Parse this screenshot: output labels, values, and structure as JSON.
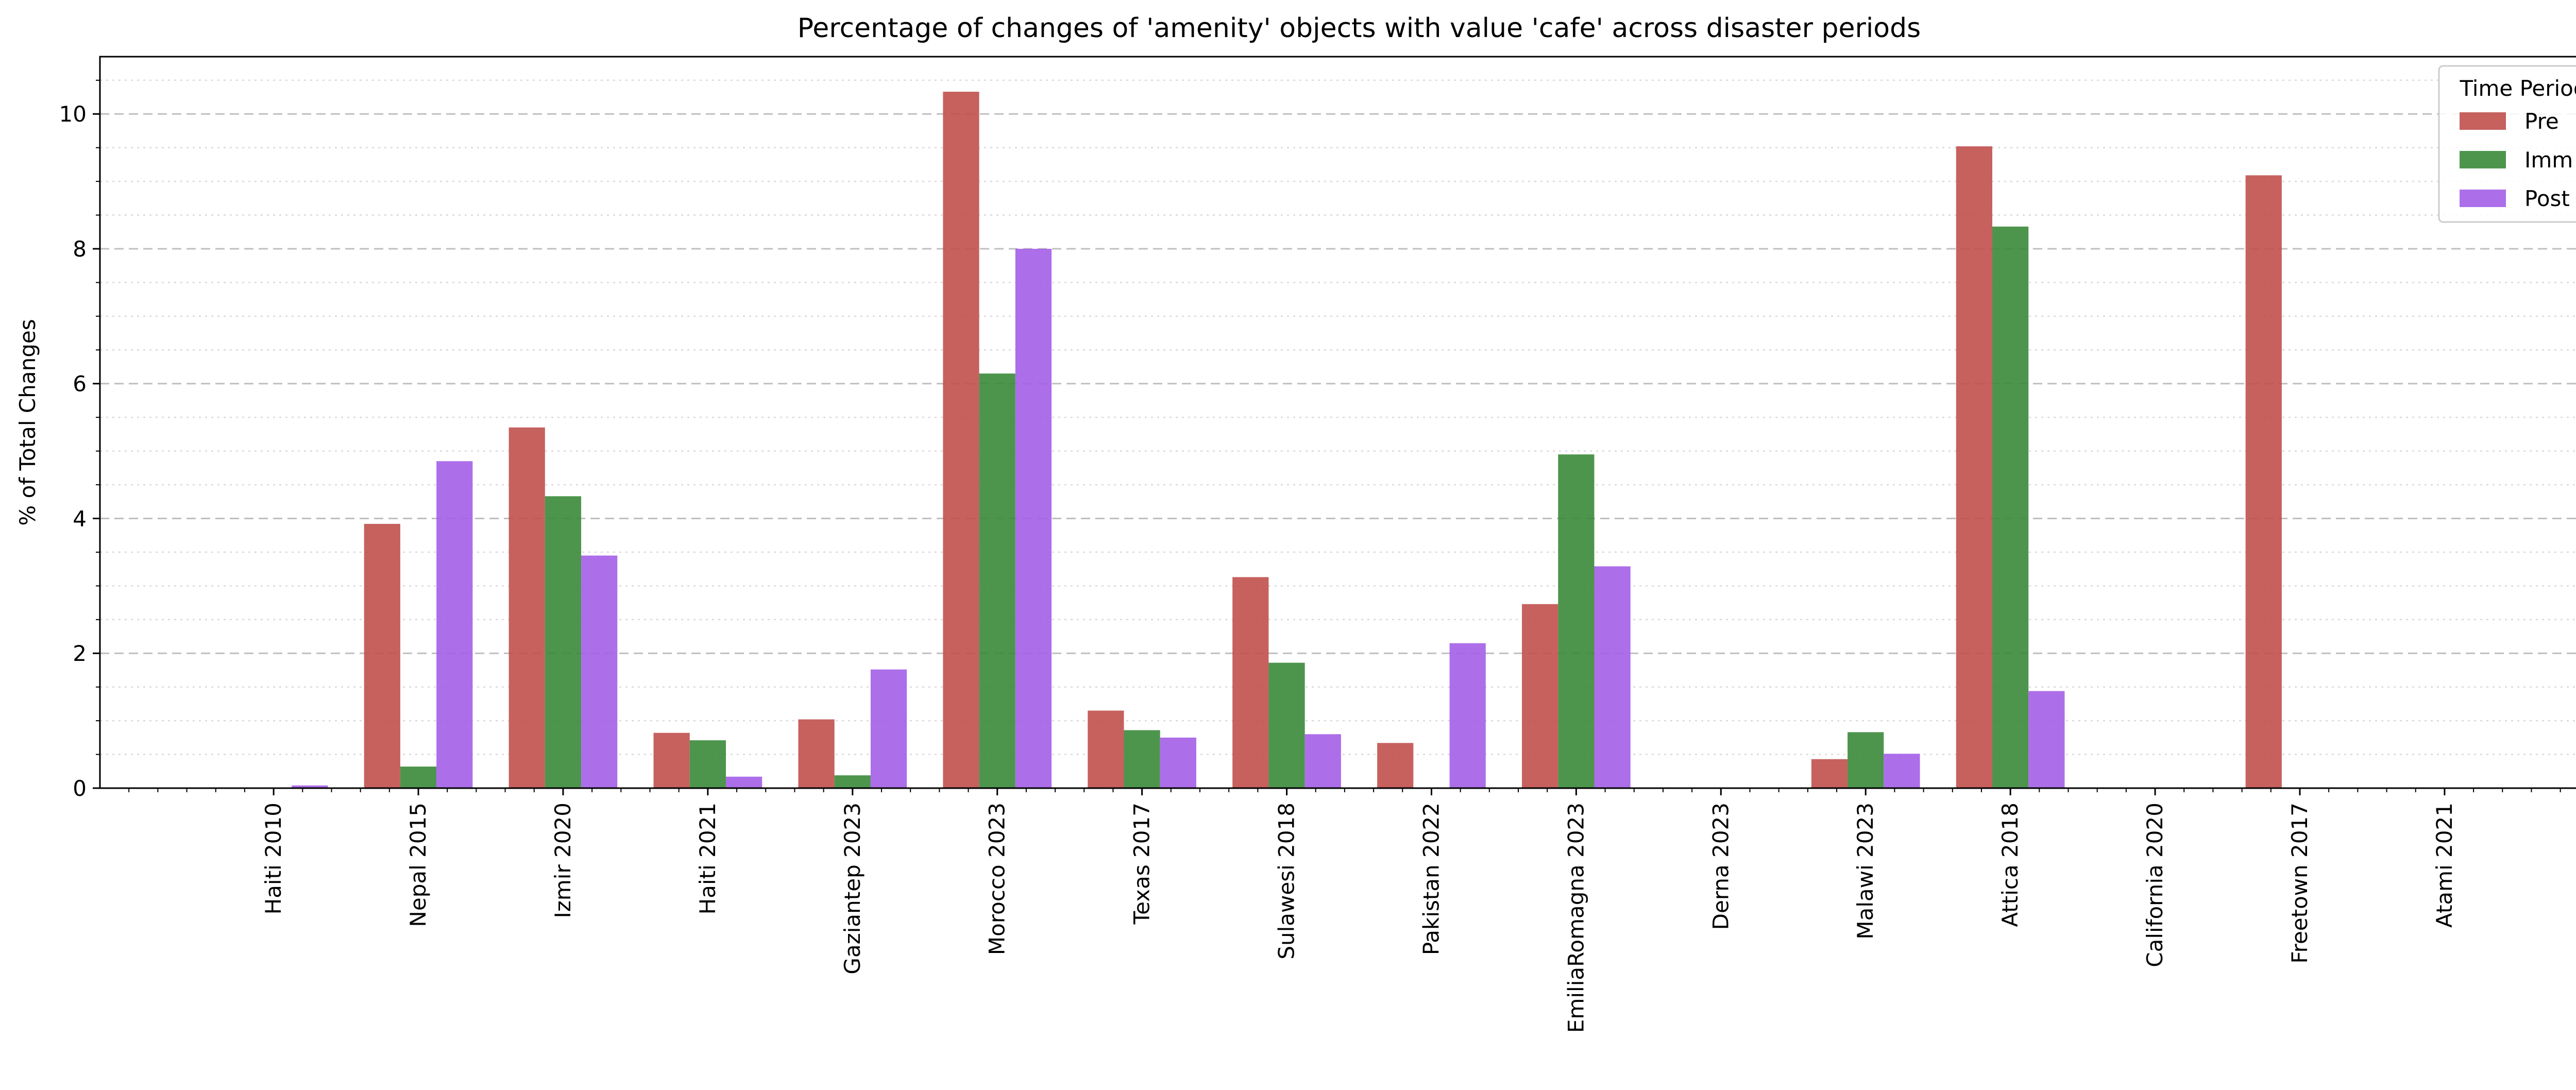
{
  "chart_data": {
    "type": "bar",
    "title": "Percentage of changes of 'amenity' objects with value 'cafe' across disaster periods",
    "xlabel": "",
    "ylabel": "% of Total Changes",
    "ylim": [
      0,
      10.85
    ],
    "yticks": [
      "0",
      "2",
      "4",
      "6",
      "8",
      "10"
    ],
    "ytick_values": [
      0,
      2,
      4,
      6,
      8,
      10
    ],
    "grid": true,
    "legend_title": "Time Period",
    "legend_position": "top-right",
    "categories": [
      "Haiti 2010",
      "Nepal 2015",
      "Izmir 2020",
      "Haiti 2021",
      "Gaziantep 2023",
      "Morocco 2023",
      "Texas 2017",
      "Sulawesi 2018",
      "Pakistan 2022",
      "EmiliaRomagna 2023",
      "Derna 2023",
      "Malawi 2023",
      "Attica 2018",
      "California 2020",
      "Freetown 2017",
      "Atami 2021"
    ],
    "series": [
      {
        "name": "Pre",
        "color": "#c0504d",
        "values": [
          0,
          3.92,
          5.35,
          0.82,
          1.02,
          10.33,
          1.15,
          3.13,
          0.67,
          2.73,
          0,
          0.43,
          9.52,
          0,
          9.09,
          0
        ]
      },
      {
        "name": "Imm",
        "color": "#3a8a3a",
        "values": [
          0,
          0.32,
          4.33,
          0.71,
          0.19,
          6.15,
          0.86,
          1.86,
          0,
          4.95,
          0,
          0.83,
          8.33,
          0,
          0,
          0
        ]
      },
      {
        "name": "Post",
        "color": "#a45ee8",
        "values": [
          0.04,
          4.85,
          3.45,
          0.17,
          1.76,
          8.0,
          0.75,
          0.8,
          2.15,
          3.29,
          0,
          0.51,
          1.44,
          0,
          0,
          0
        ]
      }
    ]
  }
}
